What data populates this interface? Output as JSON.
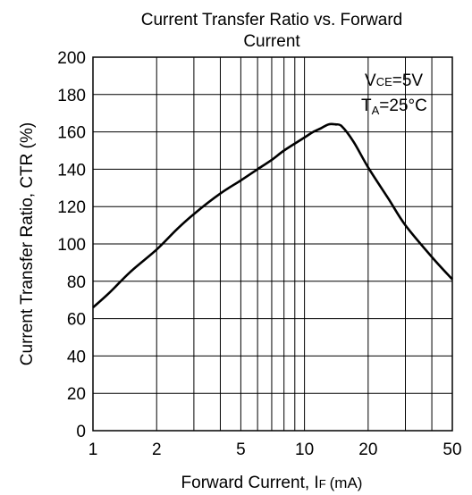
{
  "chart_data": {
    "type": "line",
    "title_line1": "Current Transfer Ratio vs. Forward",
    "title_line2": "Current",
    "xlabel": "Forward Current, ",
    "xlabel_sym": "I",
    "xlabel_sub": "F",
    "xlabel_unit": "(mA)",
    "ylabel": "Current Transfer Ratio, CTR (%)",
    "xscale": "log",
    "xlim": [
      1,
      50
    ],
    "ylim": [
      0,
      200
    ],
    "grid": true,
    "yticks": [
      "0",
      "20",
      "40",
      "60",
      "80",
      "100",
      "120",
      "140",
      "160",
      "180",
      "200"
    ],
    "xtick_labels": [
      {
        "v": 1,
        "label": "1"
      },
      {
        "v": 2,
        "label": "2"
      },
      {
        "v": 5,
        "label": "5"
      },
      {
        "v": 10,
        "label": "10"
      },
      {
        "v": 20,
        "label": "20"
      },
      {
        "v": 50,
        "label": "50"
      }
    ],
    "xgrid": [
      2,
      3,
      4,
      5,
      6,
      7,
      8,
      9,
      10,
      20,
      30,
      40
    ],
    "annotation": {
      "vce_sym": "V",
      "vce_sub": "CE",
      "vce_val": "=5V",
      "ta_sym": "T",
      "ta_sub": "A",
      "ta_val": "=25°C"
    },
    "series": [
      {
        "x": [
          1,
          1.2,
          1.5,
          2,
          2.5,
          3,
          4,
          5,
          6,
          7,
          8,
          10,
          11,
          12,
          13,
          14,
          15,
          17,
          20,
          25,
          30,
          40,
          50
        ],
        "y": [
          66,
          74,
          85,
          97,
          108,
          116,
          127,
          134,
          140,
          145,
          150,
          157,
          160,
          162,
          164,
          164,
          163,
          155,
          141,
          124,
          110,
          93,
          81
        ]
      }
    ]
  }
}
